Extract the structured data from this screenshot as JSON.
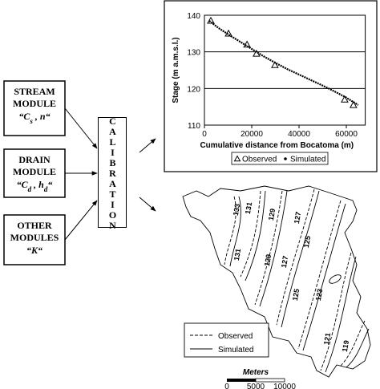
{
  "modules": [
    {
      "name": "STREAM",
      "kind": "MODULE",
      "symbols": [
        {
          "base": "C",
          "sub": "s"
        },
        {
          "base": "n"
        }
      ]
    },
    {
      "name": "DRAIN",
      "kind": "MODULE",
      "symbols": [
        {
          "base": "C",
          "sub": "d"
        },
        {
          "base": "h",
          "sub": "d"
        }
      ]
    },
    {
      "name": "OTHER",
      "kind": "MODULES",
      "symbols": [
        {
          "base": "K"
        }
      ]
    }
  ],
  "calibration": "CALIBRATION",
  "chart_data": {
    "type": "line",
    "x_label": "Cumulative distance from Bocatoma (m)",
    "y_label": "Stage (m a.m.s.l.)",
    "xlim": [
      0,
      68000
    ],
    "xticks": [
      0,
      20000,
      40000,
      60000
    ],
    "ylim": [
      110,
      140
    ],
    "yticks": [
      110,
      120,
      130,
      140
    ],
    "grid": true,
    "series": [
      {
        "name": "Observed",
        "marker": "triangle",
        "color": "#000000",
        "x": [
          2700,
          10200,
          18000,
          22000,
          29800,
          59300,
          63000
        ],
        "values": [
          138.5,
          135,
          132,
          129.5,
          126.4,
          117,
          115.5
        ]
      },
      {
        "name": "Simulated",
        "marker": "dot",
        "color": "#000000",
        "x": [
          2000,
          6000,
          10000,
          15000,
          20000,
          25000,
          30000,
          35000,
          40000,
          45000,
          50000,
          55000,
          60000,
          65000
        ],
        "values": [
          138.5,
          136.5,
          134.8,
          132.8,
          130.8,
          128.8,
          127,
          125.3,
          123.8,
          122.3,
          120.8,
          119.2,
          117.5,
          115.5
        ]
      }
    ]
  },
  "map": {
    "contour_labels": [
      "133",
      "131",
      "129",
      "127",
      "131",
      "129",
      "127",
      "125",
      "125",
      "123",
      "121",
      "119"
    ],
    "legend": [
      "Observed",
      "Simulated"
    ],
    "scale": {
      "title": "Meters",
      "labels": [
        "0",
        "5000",
        "10000"
      ]
    }
  }
}
